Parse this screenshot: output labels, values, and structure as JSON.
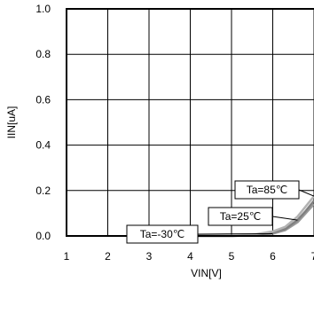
{
  "chart_data": {
    "type": "line",
    "title": "",
    "xlabel": "VIN[V]",
    "ylabel": "IIN[uA]",
    "xlim": [
      1,
      7
    ],
    "ylim": [
      0.0,
      1.0
    ],
    "x_ticks": [
      1,
      2,
      3,
      4,
      5,
      6,
      7
    ],
    "x_tick_labels": [
      "1",
      "2",
      "3",
      "4",
      "5",
      "6",
      "7"
    ],
    "y_ticks": [
      0.0,
      0.2,
      0.4,
      0.6,
      0.8,
      1.0
    ],
    "y_tick_labels": [
      "0.0",
      "0.2",
      "0.4",
      "0.6",
      "0.8",
      "1.0"
    ],
    "grid": true,
    "legend": "none",
    "series": [
      {
        "name": "Ta=-30℃",
        "color": "#999999",
        "x": [
          2.5,
          3.0,
          3.5,
          4.0,
          4.5,
          5.0,
          5.5,
          6.0,
          6.3,
          6.6,
          6.8,
          7.0
        ],
        "y": [
          0.0,
          0.0,
          0.0,
          0.0,
          0.0,
          0.0,
          0.002,
          0.01,
          0.025,
          0.06,
          0.1,
          0.14
        ]
      },
      {
        "name": "Ta=25℃",
        "color": "#808080",
        "x": [
          2.5,
          3.0,
          3.5,
          4.0,
          4.5,
          5.0,
          5.5,
          6.0,
          6.3,
          6.6,
          6.8,
          7.0
        ],
        "y": [
          0.0,
          0.0,
          0.0,
          0.0,
          0.0,
          0.0,
          0.003,
          0.015,
          0.03,
          0.07,
          0.11,
          0.155
        ]
      },
      {
        "name": "Ta=85℃",
        "color": "#b3b3b3",
        "x": [
          2.5,
          3.0,
          3.5,
          4.0,
          4.5,
          5.0,
          5.5,
          6.0,
          6.3,
          6.6,
          6.8,
          7.0
        ],
        "y": [
          0.0,
          0.0,
          0.0,
          0.0,
          0.0,
          0.0,
          0.005,
          0.02,
          0.04,
          0.085,
          0.13,
          0.175
        ]
      }
    ],
    "annotations": [
      {
        "text": "Ta=-30℃",
        "series": 0
      },
      {
        "text": "Ta=25℃",
        "series": 1
      },
      {
        "text": "Ta=85℃",
        "series": 2
      }
    ]
  }
}
